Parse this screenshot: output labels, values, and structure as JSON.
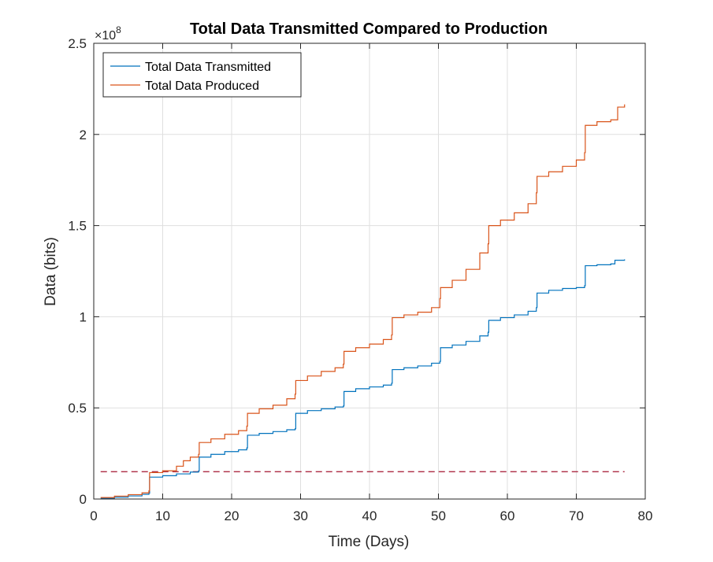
{
  "chart_data": {
    "type": "line",
    "title": "Total Data Transmitted Compared to Production",
    "xlabel": "Time (Days)",
    "ylabel": "Data (bits)",
    "xlim": [
      0,
      80
    ],
    "ylim": [
      0,
      250000000
    ],
    "x_ticks": [
      0,
      10,
      20,
      30,
      40,
      50,
      60,
      70,
      80
    ],
    "x_tick_labels": [
      "0",
      "10",
      "20",
      "30",
      "40",
      "50",
      "60",
      "70",
      "80"
    ],
    "y_ticks": [
      0,
      50000000,
      100000000,
      150000000,
      200000000,
      250000000
    ],
    "y_tick_labels": [
      "0",
      "0.5",
      "1",
      "1.5",
      "2",
      "2.5"
    ],
    "y_exponent_label": "×10",
    "y_exponent_power": "8",
    "grid": true,
    "legend_position": "top-left",
    "series": [
      {
        "name": "Total Data Transmitted",
        "color": "#0072BD",
        "style": "step",
        "points": [
          [
            1,
            500000
          ],
          [
            3,
            1000000
          ],
          [
            5,
            1700000
          ],
          [
            7,
            2600000
          ],
          [
            8,
            3200000
          ],
          [
            8.1,
            12000000
          ],
          [
            10,
            12800000
          ],
          [
            12,
            13800000
          ],
          [
            14,
            14800000
          ],
          [
            15.2,
            15400000
          ],
          [
            15.3,
            23000000
          ],
          [
            17,
            24500000
          ],
          [
            19,
            26000000
          ],
          [
            21,
            27000000
          ],
          [
            22.2,
            28000000
          ],
          [
            22.3,
            35000000
          ],
          [
            24,
            36000000
          ],
          [
            26,
            37000000
          ],
          [
            28,
            38000000
          ],
          [
            29.2,
            38500000
          ],
          [
            29.3,
            47000000
          ],
          [
            31,
            48500000
          ],
          [
            33,
            49500000
          ],
          [
            35,
            50500000
          ],
          [
            36.2,
            51000000
          ],
          [
            36.3,
            59000000
          ],
          [
            38,
            60500000
          ],
          [
            40,
            61500000
          ],
          [
            42,
            62500000
          ],
          [
            43.2,
            63500000
          ],
          [
            43.3,
            71000000
          ],
          [
            45,
            72000000
          ],
          [
            47,
            73000000
          ],
          [
            49,
            74500000
          ],
          [
            50.2,
            75500000
          ],
          [
            50.3,
            83000000
          ],
          [
            52,
            84500000
          ],
          [
            54,
            86500000
          ],
          [
            56,
            89500000
          ],
          [
            57.2,
            91500000
          ],
          [
            57.3,
            98000000
          ],
          [
            59,
            99500000
          ],
          [
            61,
            101000000
          ],
          [
            63,
            103000000
          ],
          [
            64.2,
            105000000
          ],
          [
            64.3,
            113000000
          ],
          [
            66,
            114500000
          ],
          [
            68,
            115500000
          ],
          [
            70,
            116000000
          ],
          [
            71.2,
            117000000
          ],
          [
            71.3,
            128000000
          ],
          [
            73,
            128500000
          ],
          [
            75,
            129000000
          ],
          [
            75.6,
            131000000
          ],
          [
            77,
            131500000
          ]
        ]
      },
      {
        "name": "Total Data Produced",
        "color": "#D95319",
        "style": "step",
        "points": [
          [
            1,
            800000
          ],
          [
            3,
            1600000
          ],
          [
            5,
            2400000
          ],
          [
            7,
            3400000
          ],
          [
            8,
            4500000
          ],
          [
            8.1,
            14500000
          ],
          [
            10,
            15500000
          ],
          [
            12,
            18000000
          ],
          [
            13,
            21000000
          ],
          [
            14,
            23000000
          ],
          [
            15.2,
            24500000
          ],
          [
            15.3,
            31000000
          ],
          [
            17,
            33000000
          ],
          [
            19,
            35500000
          ],
          [
            21,
            37500000
          ],
          [
            22.2,
            40000000
          ],
          [
            22.3,
            47000000
          ],
          [
            24,
            49500000
          ],
          [
            26,
            51500000
          ],
          [
            28,
            55000000
          ],
          [
            29.2,
            57500000
          ],
          [
            29.3,
            65000000
          ],
          [
            31,
            67500000
          ],
          [
            33,
            70000000
          ],
          [
            35,
            72000000
          ],
          [
            36.2,
            74000000
          ],
          [
            36.3,
            81000000
          ],
          [
            38,
            83000000
          ],
          [
            40,
            85000000
          ],
          [
            42,
            87500000
          ],
          [
            43.2,
            90000000
          ],
          [
            43.3,
            99500000
          ],
          [
            45,
            101000000
          ],
          [
            47,
            102500000
          ],
          [
            49,
            105000000
          ],
          [
            50.2,
            110000000
          ],
          [
            50.3,
            116000000
          ],
          [
            52,
            120000000
          ],
          [
            54,
            126000000
          ],
          [
            56,
            135000000
          ],
          [
            57.2,
            140000000
          ],
          [
            57.3,
            150000000
          ],
          [
            59,
            153000000
          ],
          [
            61,
            157000000
          ],
          [
            63,
            162000000
          ],
          [
            64.2,
            168000000
          ],
          [
            64.3,
            177000000
          ],
          [
            66,
            179500000
          ],
          [
            68,
            182500000
          ],
          [
            70,
            186000000
          ],
          [
            71.2,
            190000000
          ],
          [
            71.3,
            205000000
          ],
          [
            73,
            207000000
          ],
          [
            75,
            208000000
          ],
          [
            76,
            215000000
          ],
          [
            77,
            216500000
          ]
        ]
      }
    ],
    "reference_line": {
      "y": 15000000,
      "x_start": 1,
      "x_end": 77,
      "color": "#A2142F",
      "dash": "dashed"
    }
  }
}
